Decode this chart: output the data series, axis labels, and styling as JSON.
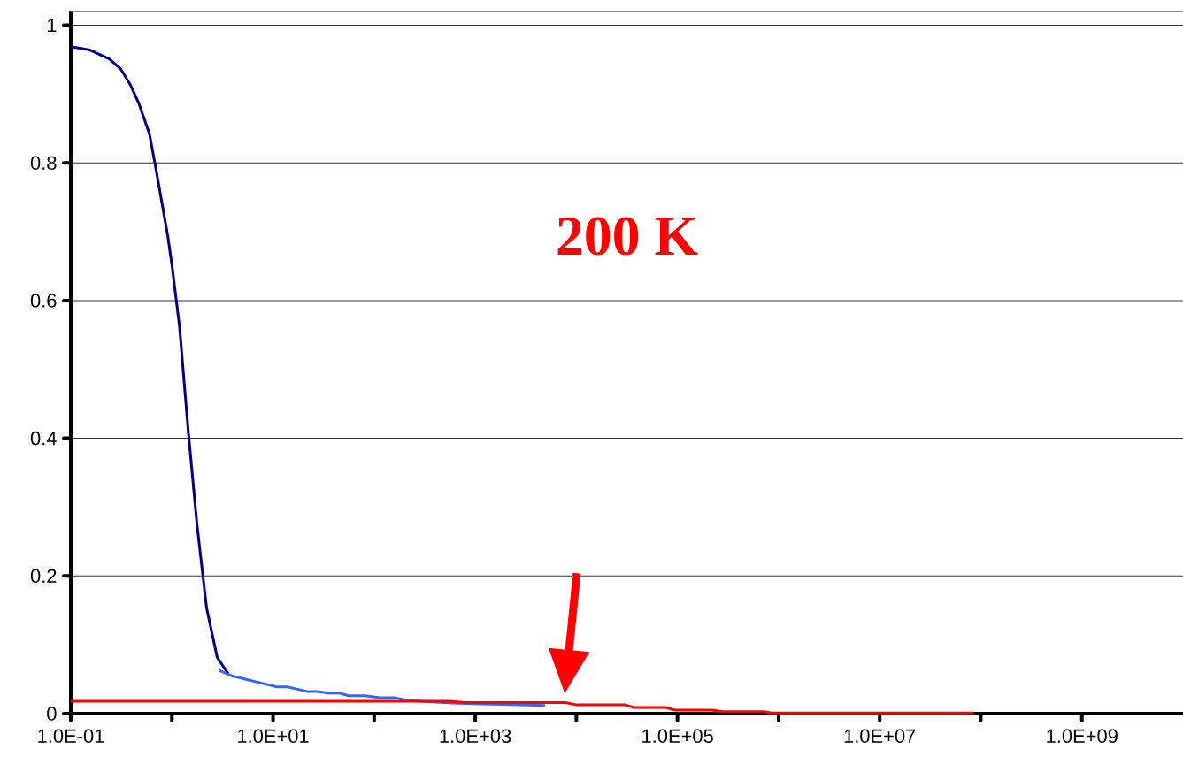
{
  "chart_data": {
    "type": "line",
    "series": [
      {
        "color": "#000080",
        "x": [
          0.1,
          0.155,
          0.24,
          0.31,
          0.39,
          0.47,
          0.6,
          0.71,
          0.91,
          1.0,
          1.19,
          1.45,
          1.77,
          2.2,
          2.8,
          3.6
        ],
        "values": [
          0.969,
          0.964,
          0.951,
          0.937,
          0.913,
          0.887,
          0.842,
          0.784,
          0.694,
          0.652,
          0.562,
          0.411,
          0.275,
          0.154,
          0.082,
          0.058
        ]
      },
      {
        "color": "#3366ff",
        "x": [
          2.9,
          3.9,
          10.8,
          13.8,
          22,
          27,
          36,
          45,
          56,
          81,
          115,
          163,
          219,
          660,
          4900
        ],
        "values": [
          0.063,
          0.055,
          0.039,
          0.039,
          0.032,
          0.032,
          0.03,
          0.03,
          0.026,
          0.026,
          0.023,
          0.023,
          0.019,
          0.015,
          0.012
        ]
      },
      {
        "color": "#ff0000",
        "x": [
          0.1,
          540,
          800,
          7800,
          9900,
          30000,
          37000,
          76000,
          96000,
          220000,
          280000,
          720000,
          840000,
          85000000
        ],
        "values": [
          0.018,
          0.018,
          0.016,
          0.016,
          0.013,
          0.013,
          0.009,
          0.009,
          0.005,
          0.005,
          0.003,
          0.003,
          0.001,
          0.001
        ]
      }
    ],
    "xlim": [
      0.1,
      10000000000
    ],
    "xticks": [
      {
        "value": 0.1,
        "label": "1.0E-01"
      },
      {
        "value": 1,
        "label": null
      },
      {
        "value": 10,
        "label": "1.0E+01"
      },
      {
        "value": 100,
        "label": null
      },
      {
        "value": 1000,
        "label": "1.0E+03"
      },
      {
        "value": 10000,
        "label": null
      },
      {
        "value": 100000,
        "label": "1.0E+05"
      },
      {
        "value": 1000000,
        "label": null
      },
      {
        "value": 10000000,
        "label": "1.0E+07"
      },
      {
        "value": 100000000,
        "label": null
      },
      {
        "value": 1000000000,
        "label": "1.0E+09"
      }
    ],
    "ylim": [
      0,
      1.02
    ],
    "yticks": [
      0,
      0.2,
      0.4,
      0.6,
      0.8,
      1
    ],
    "log": "x",
    "grid": "y",
    "annotations": [
      "200 K"
    ]
  }
}
